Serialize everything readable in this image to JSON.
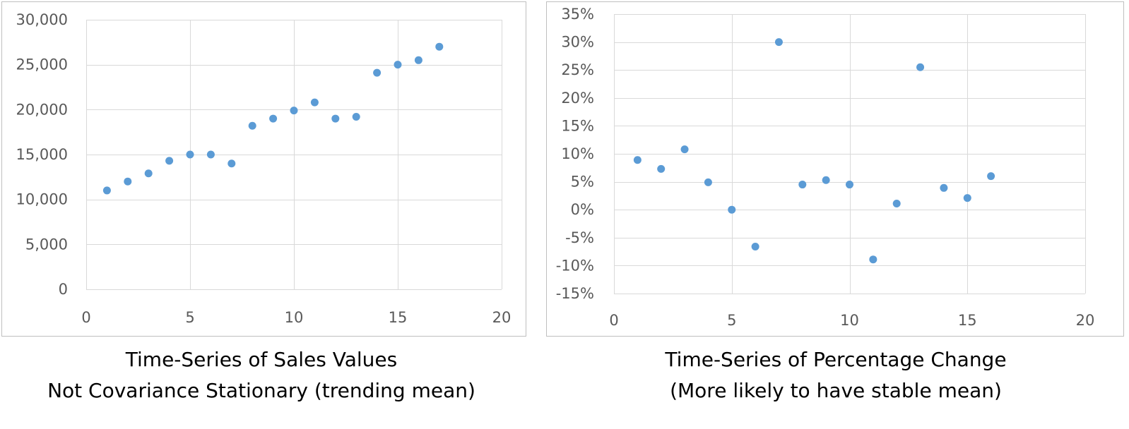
{
  "colors": {
    "marker": "#5b9bd5",
    "grid": "#d9d9d9",
    "frame": "#bfbfbf",
    "tick_text": "#595959"
  },
  "chart_data": [
    {
      "type": "scatter",
      "caption_line1": "Time-Series of Sales Values",
      "caption_line2": "Not Covariance Stationary (trending mean)",
      "xlim": [
        0,
        20
      ],
      "ylim": [
        0,
        30000
      ],
      "x_ticks": [
        0,
        5,
        10,
        15,
        20
      ],
      "y_ticks": [
        0,
        5000,
        10000,
        15000,
        20000,
        25000,
        30000
      ],
      "x_tick_labels": [
        "0",
        "5",
        "10",
        "15",
        "20"
      ],
      "y_tick_labels": [
        "0",
        "5,000",
        "10,000",
        "15,000",
        "20,000",
        "25,000",
        "30,000"
      ],
      "grid": true,
      "legend": "none",
      "series": [
        {
          "x": [
            1,
            2,
            3,
            4,
            5,
            6,
            7,
            8,
            9,
            10,
            11,
            12,
            13,
            14,
            15,
            16,
            17
          ],
          "y": [
            11000,
            12000,
            12900,
            14300,
            15000,
            15000,
            14000,
            18200,
            19000,
            19900,
            20800,
            19000,
            19200,
            24100,
            25000,
            25500,
            27000
          ]
        }
      ]
    },
    {
      "type": "scatter",
      "caption_line1": "Time-Series of Percentage Change",
      "caption_line2": "(More likely to have stable mean)",
      "xlim": [
        0,
        20
      ],
      "ylim": [
        -15,
        35
      ],
      "x_ticks": [
        0,
        5,
        10,
        15,
        20
      ],
      "y_ticks": [
        -15,
        -10,
        -5,
        0,
        5,
        10,
        15,
        20,
        25,
        30,
        35
      ],
      "x_tick_labels": [
        "0",
        "5",
        "10",
        "15",
        "20"
      ],
      "y_tick_labels": [
        "-15%",
        "-10%",
        "-5%",
        "0%",
        "5%",
        "10%",
        "15%",
        "20%",
        "25%",
        "30%",
        "35%"
      ],
      "grid": true,
      "legend": "none",
      "series": [
        {
          "x": [
            1,
            2,
            3,
            4,
            5,
            6,
            7,
            8,
            9,
            10,
            11,
            12,
            13,
            14,
            15,
            16
          ],
          "y": [
            8.9,
            7.3,
            10.8,
            4.9,
            0.0,
            -6.6,
            30.0,
            4.5,
            5.3,
            4.5,
            -8.9,
            1.1,
            25.5,
            3.9,
            2.1,
            6.0
          ]
        }
      ]
    }
  ]
}
